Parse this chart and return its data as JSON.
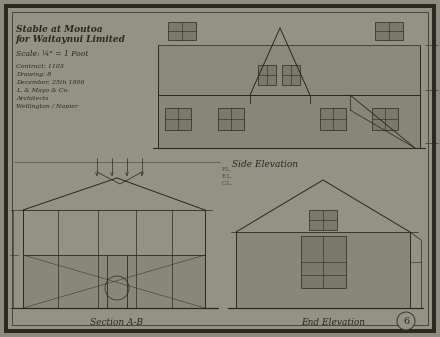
{
  "background_color": "#8c8c7e",
  "paper_color": "#929285",
  "border_color": "#1a1a14",
  "drawing_color": "#2a2820",
  "fig_width": 4.4,
  "fig_height": 3.37,
  "dpi": 100,
  "labels": {
    "side_elevation": "Side Elevation",
    "section_ab": "Section A-B",
    "end_elevation": "End Elevation"
  },
  "title_lines": [
    "Stable at Moutoa",
    "for Waitaynui Limited",
    "Scale: ¼\" = 1 Foot"
  ],
  "subtitle_lines": [
    "Contract: 1103",
    "Drawing: 8",
    "December, 25th 1906",
    "L. & Mayo & Co.",
    "Architects",
    "Wellington / Napier"
  ],
  "page_number": "6"
}
